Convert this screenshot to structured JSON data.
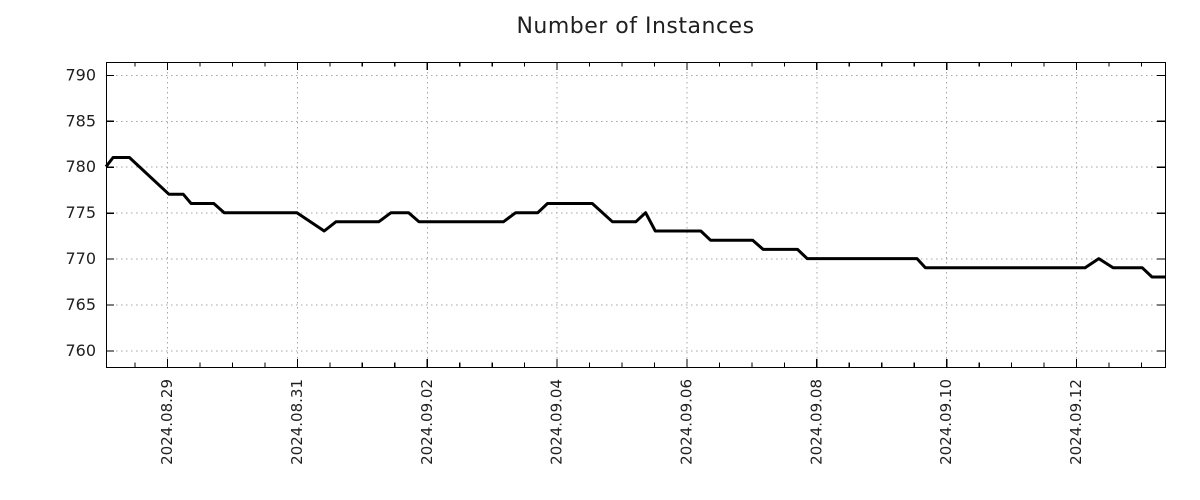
{
  "title": "Number of Instances",
  "colors": {
    "background": "#ffffff",
    "frame": "#000000",
    "tick": "#000000",
    "grid": "#a6a6a6",
    "text": "#1f1f1f",
    "line": "#000000"
  },
  "chart_data": {
    "type": "line",
    "title": "Number of Instances",
    "legend": "none",
    "grid": "dotted",
    "x_axis": {
      "kind": "date",
      "day0_label": "2024.08.29",
      "tick_labels": [
        "2024.08.29",
        "2024.08.31",
        "2024.09.02",
        "2024.09.04",
        "2024.09.06",
        "2024.09.08",
        "2024.09.10",
        "2024.09.12"
      ],
      "tick_days": [
        0,
        2,
        4,
        6,
        8,
        10,
        12,
        14
      ],
      "xlim_days": [
        -0.94,
        15.37
      ],
      "minor_tick_interval_days": 0.5,
      "label_rotation_deg": -90
    },
    "y_axis": {
      "ticks": [
        760,
        765,
        770,
        775,
        780,
        785,
        790
      ],
      "ylim": [
        758.2,
        791.4
      ]
    },
    "series": [
      {
        "name": "instances",
        "color": "#000000",
        "line_width": 3,
        "points_day_value": [
          [
            -0.94,
            780
          ],
          [
            -0.83,
            781
          ],
          [
            -0.58,
            781
          ],
          [
            0.03,
            777
          ],
          [
            0.25,
            777
          ],
          [
            0.37,
            776
          ],
          [
            0.72,
            776
          ],
          [
            0.88,
            775
          ],
          [
            2.0,
            775
          ],
          [
            2.42,
            773
          ],
          [
            2.6,
            774
          ],
          [
            3.26,
            774
          ],
          [
            3.45,
            775
          ],
          [
            3.72,
            775
          ],
          [
            3.88,
            774
          ],
          [
            5.18,
            774
          ],
          [
            5.37,
            775
          ],
          [
            5.71,
            775
          ],
          [
            5.86,
            776
          ],
          [
            6.55,
            776
          ],
          [
            6.86,
            774
          ],
          [
            7.22,
            774
          ],
          [
            7.37,
            775
          ],
          [
            7.52,
            773
          ],
          [
            8.22,
            773
          ],
          [
            8.37,
            772
          ],
          [
            9.02,
            772
          ],
          [
            9.18,
            771
          ],
          [
            9.71,
            771
          ],
          [
            9.86,
            770
          ],
          [
            11.55,
            770
          ],
          [
            11.68,
            769
          ],
          [
            14.14,
            769
          ],
          [
            14.35,
            770
          ],
          [
            14.57,
            769
          ],
          [
            15.02,
            769
          ],
          [
            15.17,
            768
          ],
          [
            15.37,
            768
          ]
        ]
      }
    ]
  }
}
